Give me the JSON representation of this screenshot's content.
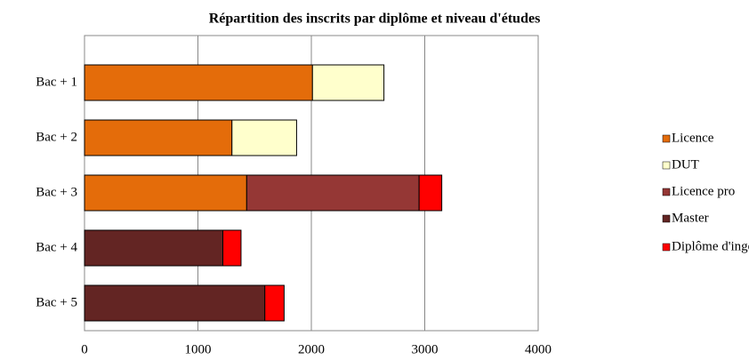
{
  "chart_data": {
    "type": "stacked-barh",
    "title": "Répartition des inscrits par diplôme et niveau d'études",
    "categories": [
      "Bac + 1",
      "Bac + 2",
      "Bac + 3",
      "Bac + 4",
      "Bac + 5"
    ],
    "series": [
      {
        "name": "Licence",
        "color": "#e46c0a",
        "values": [
          2010,
          1300,
          1430,
          null,
          null
        ]
      },
      {
        "name": "DUT",
        "color": "#ffffcc",
        "values": [
          630,
          570,
          null,
          null,
          null
        ]
      },
      {
        "name": "Licence pro",
        "color": "#953735",
        "values": [
          null,
          null,
          1520,
          null,
          null
        ]
      },
      {
        "name": "Master",
        "color": "#632523",
        "values": [
          null,
          null,
          null,
          1220,
          1590
        ]
      },
      {
        "name": "Diplôme d'ingénieur",
        "color": "#ff0000",
        "values": [
          null,
          null,
          200,
          160,
          170
        ]
      }
    ],
    "xlim": [
      0,
      4000
    ],
    "xticks": [
      0,
      1000,
      2000,
      3000,
      4000
    ],
    "grid": true,
    "legend": "right"
  }
}
